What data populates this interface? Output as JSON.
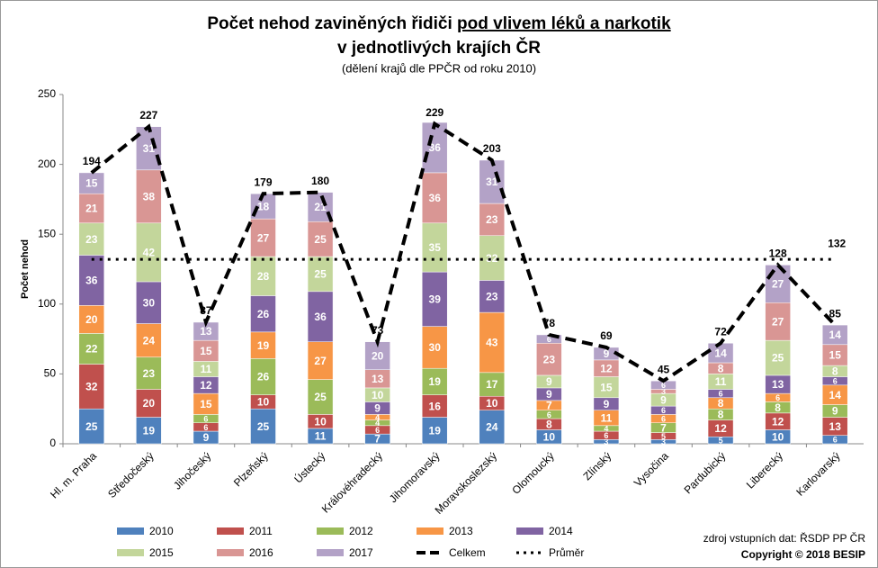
{
  "chart_data": {
    "type": "stacked-bar",
    "title": [
      "Počet nehod zaviněných řidiči",
      "pod vlivem léků a narkotik",
      "v jednotlivých krajích ČR"
    ],
    "subtitle": "(dělení krajů dle PPČR od roku 2010)",
    "y_label": "Počet nehod",
    "categories": [
      "Hl. m. Praha",
      "Středočeský",
      "Jihočeský",
      "Plzeňský",
      "Ústecký",
      "Královéhradecký",
      "Jihomoravský",
      "Moravskoslezský",
      "Olomoucký",
      "Zlínský",
      "Vysočina",
      "Pardubický",
      "Liberecký",
      "Karlovarský"
    ],
    "series": [
      {
        "name": "2010",
        "color": "#4f81bd",
        "values": [
          25,
          19,
          9,
          25,
          11,
          7,
          19,
          24,
          10,
          3,
          3,
          5,
          10,
          6
        ]
      },
      {
        "name": "2011",
        "color": "#c0504d",
        "values": [
          32,
          20,
          6,
          10,
          10,
          6,
          16,
          10,
          8,
          6,
          5,
          12,
          12,
          13
        ]
      },
      {
        "name": "2012",
        "color": "#9bbb59",
        "values": [
          22,
          23,
          6,
          26,
          25,
          4,
          19,
          17,
          6,
          4,
          7,
          8,
          8,
          9
        ]
      },
      {
        "name": "2013",
        "color": "#f79646",
        "values": [
          20,
          24,
          15,
          19,
          27,
          4,
          30,
          43,
          7,
          11,
          6,
          8,
          6,
          14
        ]
      },
      {
        "name": "2014",
        "color": "#8064a2",
        "values": [
          36,
          30,
          12,
          26,
          36,
          9,
          39,
          23,
          9,
          9,
          6,
          6,
          13,
          6
        ]
      },
      {
        "name": "2015",
        "color": "#c3d69b",
        "values": [
          23,
          42,
          11,
          28,
          25,
          10,
          35,
          32,
          9,
          15,
          9,
          11,
          25,
          8
        ]
      },
      {
        "name": "2016",
        "color": "#d99694",
        "values": [
          21,
          38,
          15,
          27,
          25,
          13,
          36,
          23,
          23,
          12,
          3,
          8,
          27,
          15
        ]
      },
      {
        "name": "2017",
        "color": "#b3a2c7",
        "values": [
          15,
          31,
          13,
          18,
          21,
          20,
          36,
          31,
          6,
          9,
          6,
          14,
          27,
          14
        ]
      }
    ],
    "total": {
      "name": "Celkem",
      "color": "#000000",
      "values": [
        194,
        227,
        87,
        179,
        180,
        73,
        229,
        203,
        78,
        69,
        45,
        72,
        128,
        85
      ]
    },
    "average": {
      "name": "Průměr",
      "color": "#000000",
      "values": [
        132,
        132,
        132,
        132,
        132,
        132,
        132,
        132,
        132,
        132,
        132,
        132,
        132,
        132
      ]
    },
    "ylim": [
      0,
      250
    ],
    "yticks": [
      0,
      50,
      100,
      150,
      200,
      250
    ],
    "grid": false,
    "source": "zdroj vstupních dat: ŘSDP PP ČR",
    "copyright": "Copyright © 2018 BESIP"
  }
}
